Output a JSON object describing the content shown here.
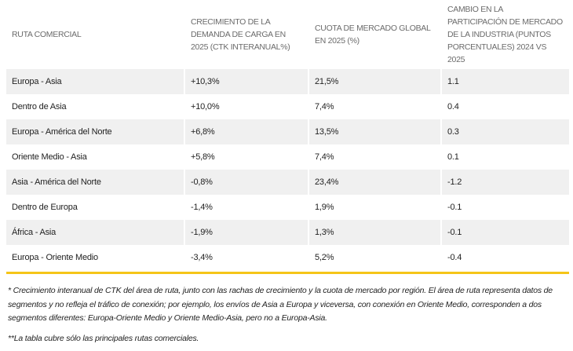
{
  "table": {
    "headers": [
      "Ruta comercial",
      "Crecimiento de la demanda de carga en 2025 (CTK interanual%)",
      "Cuota de mercado global en 2025 (%)",
      "Cambio en la participación de mercado de la industria (puntos porcentuales) 2024 vs 2025"
    ],
    "rows": [
      [
        "Europa - Asia",
        "+10,3%",
        "21,5%",
        "1.1"
      ],
      [
        "Dentro de Asia",
        "+10,0%",
        "7,4%",
        "0.4"
      ],
      [
        "Europa - América del Norte",
        "+6,8%",
        "13,5%",
        "0.3"
      ],
      [
        "Oriente Medio - Asia",
        "+5,8%",
        "7,4%",
        "0.1"
      ],
      [
        "Asia - América del Norte",
        "-0,8%",
        "23,4%",
        "-1.2"
      ],
      [
        "Dentro de Europa",
        "-1,4%",
        "1,9%",
        "-0.1"
      ],
      [
        "África - Asia",
        "-1,9%",
        "1,3%",
        "-0.1"
      ],
      [
        "Europa - Oriente Medio",
        "-3,4%",
        "5,2%",
        "-0.4"
      ]
    ]
  },
  "notes": [
    "* Crecimiento interanual de CTK del área de ruta, junto con las rachas de crecimiento y la cuota de mercado por región. El área de ruta representa datos de segmentos y no refleja el tráfico de conexión; por ejemplo, los envíos de Asia a Europa y viceversa, con conexión en Oriente Medio, corresponden a dos segmentos diferentes: Europa-Oriente Medio y Oriente Medio-Asia, pero no a Europa-Asia.",
    "**La tabla cubre sólo las principales rutas comerciales."
  ],
  "colors": {
    "accent": "#f5c518",
    "shade": "#f0f0f0",
    "header": "#6b6b6b"
  }
}
